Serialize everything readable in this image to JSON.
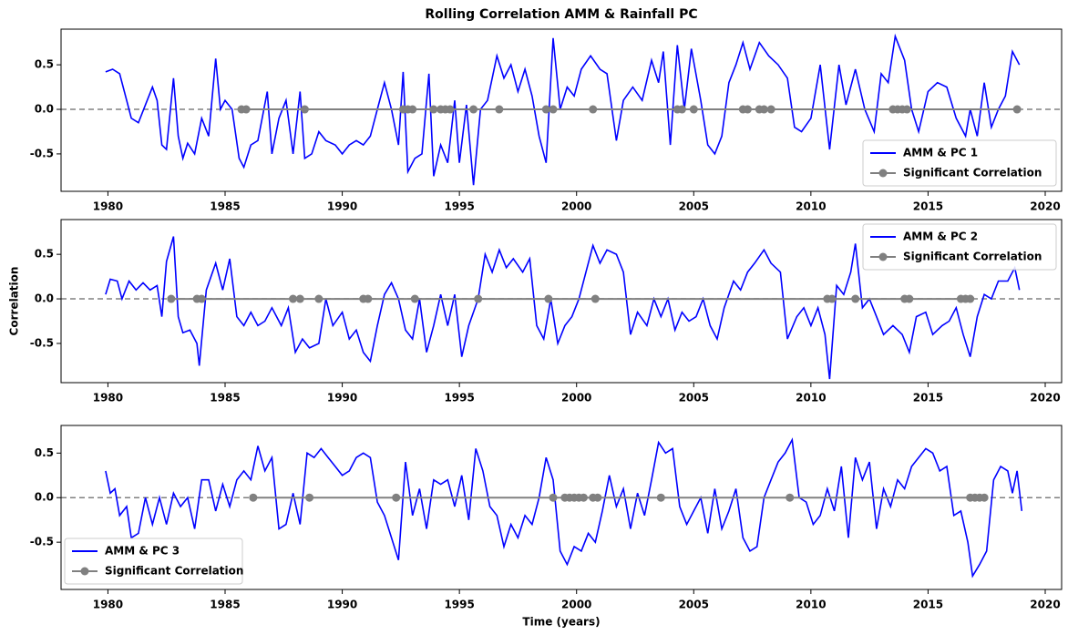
{
  "chart_data": [
    {
      "type": "line",
      "title": "Rolling Correlation AMM & Rainfall PC",
      "legend": "lower right",
      "zero_line": true,
      "xlim": [
        1978,
        2020.7
      ],
      "xticks": [
        1980,
        1985,
        1990,
        1995,
        2000,
        2005,
        2010,
        2015,
        2020
      ],
      "ylim": [
        -0.92,
        0.9
      ],
      "yticks": [
        -0.5,
        {
          "value": 0,
          "label": "0.0"
        },
        0.5
      ],
      "series": [
        {
          "name": "AMM & PC 1",
          "color": "#0000ff",
          "x": [
            1979.9,
            1980.2,
            1980.5,
            1980.8,
            1981.0,
            1981.3,
            1981.6,
            1981.9,
            1982.1,
            1982.3,
            1982.5,
            1982.8,
            1983.0,
            1983.2,
            1983.4,
            1983.7,
            1984.0,
            1984.3,
            1984.6,
            1984.8,
            1985.0,
            1985.3,
            1985.6,
            1985.8,
            1986.1,
            1986.4,
            1986.8,
            1987.0,
            1987.3,
            1987.6,
            1987.9,
            1988.2,
            1988.4,
            1988.7,
            1989.0,
            1989.3,
            1989.7,
            1990.0,
            1990.3,
            1990.6,
            1990.9,
            1991.2,
            1991.5,
            1991.8,
            1992.1,
            1992.4,
            1992.6,
            1992.8,
            1993.1,
            1993.4,
            1993.7,
            1993.9,
            1994.2,
            1994.5,
            1994.8,
            1995.0,
            1995.3,
            1995.6,
            1995.9,
            1996.2,
            1996.6,
            1996.9,
            1997.2,
            1997.5,
            1997.8,
            1998.1,
            1998.4,
            1998.7,
            1999.0,
            1999.3,
            1999.6,
            1999.9,
            2000.2,
            2000.6,
            2001.0,
            2001.3,
            2001.7,
            2002.0,
            2002.4,
            2002.8,
            2003.2,
            2003.5,
            2003.7,
            2004.0,
            2004.3,
            2004.6,
            2004.9,
            2005.3,
            2005.6,
            2005.9,
            2006.2,
            2006.5,
            2006.8,
            2007.1,
            2007.4,
            2007.8,
            2008.2,
            2008.6,
            2009.0,
            2009.3,
            2009.6,
            2010.0,
            2010.4,
            2010.8,
            2011.2,
            2011.5,
            2011.9,
            2012.3,
            2012.7,
            2013.0,
            2013.3,
            2013.6,
            2014.0,
            2014.3,
            2014.6,
            2015.0,
            2015.4,
            2015.8,
            2016.2,
            2016.6,
            2016.8,
            2017.1,
            2017.4,
            2017.7,
            2018.0,
            2018.3,
            2018.6,
            2018.9
          ],
          "values": [
            0.42,
            0.45,
            0.4,
            0.1,
            -0.1,
            -0.15,
            0.05,
            0.25,
            0.1,
            -0.4,
            -0.45,
            0.35,
            -0.3,
            -0.55,
            -0.38,
            -0.5,
            -0.1,
            -0.3,
            0.57,
            0.0,
            0.1,
            0.0,
            -0.55,
            -0.65,
            -0.4,
            -0.35,
            0.2,
            -0.5,
            -0.1,
            0.1,
            -0.5,
            0.2,
            -0.55,
            -0.5,
            -0.25,
            -0.35,
            -0.4,
            -0.5,
            -0.4,
            -0.35,
            -0.4,
            -0.3,
            0.0,
            0.3,
            0.0,
            -0.4,
            0.42,
            -0.7,
            -0.55,
            -0.5,
            0.4,
            -0.75,
            -0.4,
            -0.6,
            0.1,
            -0.6,
            0.05,
            -0.85,
            0.0,
            0.1,
            0.6,
            0.35,
            0.5,
            0.2,
            0.45,
            0.15,
            -0.3,
            -0.6,
            0.8,
            0.0,
            0.25,
            0.15,
            0.45,
            0.6,
            0.45,
            0.4,
            -0.35,
            0.1,
            0.25,
            0.1,
            0.55,
            0.3,
            0.65,
            -0.4,
            0.72,
            0.0,
            0.68,
            0.1,
            -0.4,
            -0.5,
            -0.3,
            0.3,
            0.5,
            0.75,
            0.45,
            0.75,
            0.6,
            0.5,
            0.35,
            -0.2,
            -0.25,
            -0.1,
            0.5,
            -0.45,
            0.5,
            0.05,
            0.45,
            0.0,
            -0.25,
            0.4,
            0.3,
            0.82,
            0.55,
            0.0,
            -0.25,
            0.2,
            0.3,
            0.25,
            -0.1,
            -0.3,
            0.0,
            -0.3,
            0.3,
            -0.2,
            0.0,
            0.15,
            0.65,
            0.5
          ]
        },
        {
          "name": "Significant Correlation",
          "color": "#808080",
          "marker": "circle",
          "x": [
            1985.7,
            1985.9,
            1988.4,
            1992.6,
            1992.8,
            1993.0,
            1993.9,
            1994.2,
            1994.4,
            1994.6,
            1995.6,
            1996.7,
            1998.7,
            1999.0,
            2000.7,
            2004.3,
            2004.5,
            2005.0,
            2007.1,
            2007.3,
            2007.8,
            2008.0,
            2008.3,
            2013.5,
            2013.7,
            2013.9,
            2014.1,
            2018.8
          ],
          "values": [
            0,
            0,
            0,
            0,
            0,
            0,
            0,
            0,
            0,
            0,
            0,
            0,
            0,
            0,
            0,
            0,
            0,
            0,
            0,
            0,
            0,
            0,
            0,
            0,
            0,
            0,
            0,
            0
          ]
        }
      ]
    },
    {
      "type": "line",
      "y_label": "Correlation",
      "legend": "upper right",
      "zero_line": true,
      "xlim": [
        1978,
        2020.7
      ],
      "xticks": [
        1980,
        1985,
        1990,
        1995,
        2000,
        2005,
        2010,
        2015,
        2020
      ],
      "ylim": [
        -0.94,
        0.89
      ],
      "yticks": [
        -0.5,
        {
          "value": 0,
          "label": "0.0"
        },
        0.5
      ],
      "series": [
        {
          "name": "AMM & PC 2",
          "color": "#0000ff",
          "x": [
            1979.9,
            1980.1,
            1980.4,
            1980.6,
            1980.9,
            1981.2,
            1981.5,
            1981.8,
            1982.1,
            1982.3,
            1982.5,
            1982.8,
            1983.0,
            1983.2,
            1983.5,
            1983.8,
            1983.9,
            1984.2,
            1984.6,
            1984.9,
            1985.2,
            1985.5,
            1985.8,
            1986.1,
            1986.4,
            1986.7,
            1987.0,
            1987.4,
            1987.7,
            1988.0,
            1988.3,
            1988.6,
            1989.0,
            1989.3,
            1989.6,
            1990.0,
            1990.3,
            1990.6,
            1990.9,
            1991.2,
            1991.5,
            1991.8,
            1992.1,
            1992.4,
            1992.7,
            1993.0,
            1993.3,
            1993.6,
            1993.9,
            1994.2,
            1994.5,
            1994.8,
            1995.1,
            1995.4,
            1995.8,
            1996.1,
            1996.4,
            1996.7,
            1997.0,
            1997.3,
            1997.7,
            1998.0,
            1998.3,
            1998.6,
            1998.9,
            1999.2,
            1999.5,
            1999.8,
            2000.1,
            2000.4,
            2000.7,
            2001.0,
            2001.3,
            2001.7,
            2002.0,
            2002.3,
            2002.6,
            2003.0,
            2003.3,
            2003.6,
            2003.9,
            2004.2,
            2004.5,
            2004.8,
            2005.1,
            2005.4,
            2005.7,
            2006.0,
            2006.3,
            2006.7,
            2007.0,
            2007.3,
            2007.6,
            2008.0,
            2008.3,
            2008.7,
            2009.0,
            2009.4,
            2009.7,
            2010.0,
            2010.3,
            2010.6,
            2010.8,
            2011.1,
            2011.4,
            2011.7,
            2011.9,
            2012.2,
            2012.5,
            2012.8,
            2013.1,
            2013.5,
            2013.9,
            2014.2,
            2014.5,
            2014.9,
            2015.2,
            2015.6,
            2015.9,
            2016.2,
            2016.5,
            2016.8,
            2017.1,
            2017.4,
            2017.7,
            2018.0,
            2018.4,
            2018.7,
            2018.9
          ],
          "values": [
            0.05,
            0.22,
            0.2,
            0.0,
            0.2,
            0.1,
            0.18,
            0.1,
            0.15,
            -0.2,
            0.42,
            0.7,
            -0.2,
            -0.38,
            -0.35,
            -0.5,
            -0.75,
            0.1,
            0.4,
            0.1,
            0.45,
            -0.2,
            -0.3,
            -0.15,
            -0.3,
            -0.25,
            -0.1,
            -0.3,
            -0.1,
            -0.6,
            -0.45,
            -0.55,
            -0.5,
            0.0,
            -0.3,
            -0.15,
            -0.45,
            -0.35,
            -0.6,
            -0.7,
            -0.3,
            0.05,
            0.18,
            0.0,
            -0.35,
            -0.45,
            0.0,
            -0.6,
            -0.3,
            0.05,
            -0.3,
            0.05,
            -0.65,
            -0.3,
            0.0,
            0.5,
            0.3,
            0.55,
            0.35,
            0.45,
            0.3,
            0.45,
            -0.3,
            -0.45,
            0.0,
            -0.5,
            -0.3,
            -0.2,
            0.0,
            0.3,
            0.6,
            0.4,
            0.55,
            0.5,
            0.3,
            -0.4,
            -0.15,
            -0.3,
            0.0,
            -0.2,
            0.0,
            -0.35,
            -0.15,
            -0.25,
            -0.2,
            0.0,
            -0.3,
            -0.45,
            -0.1,
            0.2,
            0.1,
            0.3,
            0.4,
            0.55,
            0.4,
            0.3,
            -0.45,
            -0.2,
            -0.1,
            -0.3,
            -0.1,
            -0.4,
            -0.9,
            0.15,
            0.05,
            0.3,
            0.62,
            -0.1,
            0.0,
            -0.2,
            -0.4,
            -0.3,
            -0.4,
            -0.6,
            -0.2,
            -0.15,
            -0.4,
            -0.3,
            -0.25,
            -0.1,
            -0.4,
            -0.65,
            -0.2,
            0.05,
            0.0,
            0.2,
            0.2,
            0.35,
            0.1
          ]
        },
        {
          "name": "Significant Correlation",
          "color": "#808080",
          "marker": "circle",
          "x": [
            1982.7,
            1983.8,
            1984.0,
            1987.9,
            1988.2,
            1989.0,
            1990.9,
            1991.1,
            1993.1,
            1995.8,
            1998.8,
            2000.8,
            2010.7,
            2010.9,
            2011.9,
            2014.0,
            2014.2,
            2016.4,
            2016.6,
            2016.8
          ],
          "values": [
            0,
            0,
            0,
            0,
            0,
            0,
            0,
            0,
            0,
            0,
            0,
            0,
            0,
            0,
            0,
            0,
            0,
            0,
            0,
            0
          ]
        }
      ]
    },
    {
      "type": "line",
      "x_label": "Time (years)",
      "legend": "lower left",
      "zero_line": true,
      "xlim": [
        1978,
        2020.7
      ],
      "xticks": [
        1980,
        1985,
        1990,
        1995,
        2000,
        2005,
        2010,
        2015,
        2020
      ],
      "ylim": [
        -1.03,
        0.81
      ],
      "yticks": [
        -0.5,
        {
          "value": 0,
          "label": "0.0"
        },
        0.5
      ],
      "series": [
        {
          "name": "AMM & PC 3",
          "color": "#0000ff",
          "x": [
            1979.9,
            1980.1,
            1980.3,
            1980.5,
            1980.8,
            1981.0,
            1981.3,
            1981.6,
            1981.9,
            1982.2,
            1982.5,
            1982.8,
            1983.1,
            1983.4,
            1983.7,
            1984.0,
            1984.3,
            1984.6,
            1984.9,
            1985.2,
            1985.5,
            1985.8,
            1986.1,
            1986.4,
            1986.7,
            1987.0,
            1987.3,
            1987.6,
            1987.9,
            1988.2,
            1988.5,
            1988.8,
            1989.1,
            1989.4,
            1989.7,
            1990.0,
            1990.3,
            1990.6,
            1990.9,
            1991.2,
            1991.5,
            1991.8,
            1992.1,
            1992.4,
            1992.7,
            1993.0,
            1993.3,
            1993.6,
            1993.9,
            1994.2,
            1994.5,
            1994.8,
            1995.1,
            1995.4,
            1995.7,
            1996.0,
            1996.3,
            1996.6,
            1996.9,
            1997.2,
            1997.5,
            1997.8,
            1998.1,
            1998.4,
            1998.7,
            1999.0,
            1999.3,
            1999.6,
            1999.9,
            2000.2,
            2000.5,
            2000.8,
            2001.1,
            2001.4,
            2001.7,
            2002.0,
            2002.3,
            2002.6,
            2002.9,
            2003.2,
            2003.5,
            2003.8,
            2004.1,
            2004.4,
            2004.7,
            2005.0,
            2005.3,
            2005.6,
            2005.9,
            2006.2,
            2006.5,
            2006.8,
            2007.1,
            2007.4,
            2007.7,
            2008.0,
            2008.3,
            2008.6,
            2008.9,
            2009.2,
            2009.5,
            2009.8,
            2010.1,
            2010.4,
            2010.7,
            2011.0,
            2011.3,
            2011.6,
            2011.9,
            2012.2,
            2012.5,
            2012.8,
            2013.1,
            2013.4,
            2013.7,
            2014.0,
            2014.3,
            2014.6,
            2014.9,
            2015.2,
            2015.5,
            2015.8,
            2016.1,
            2016.4,
            2016.7,
            2016.9,
            2017.2,
            2017.5,
            2017.8,
            2018.1,
            2018.4,
            2018.6,
            2018.8,
            2019.0
          ],
          "values": [
            0.3,
            0.05,
            0.1,
            -0.2,
            -0.1,
            -0.45,
            -0.4,
            0.0,
            -0.3,
            0.0,
            -0.3,
            0.05,
            -0.1,
            0.0,
            -0.35,
            0.2,
            0.2,
            -0.15,
            0.15,
            -0.1,
            0.2,
            0.3,
            0.2,
            0.58,
            0.3,
            0.45,
            -0.35,
            -0.3,
            0.05,
            -0.3,
            0.5,
            0.45,
            0.55,
            0.45,
            0.35,
            0.25,
            0.3,
            0.45,
            0.5,
            0.45,
            -0.05,
            -0.2,
            -0.45,
            -0.7,
            0.4,
            -0.2,
            0.1,
            -0.35,
            0.2,
            0.15,
            0.2,
            -0.1,
            0.25,
            -0.25,
            0.55,
            0.3,
            -0.1,
            -0.2,
            -0.55,
            -0.3,
            -0.45,
            -0.2,
            -0.3,
            0.0,
            0.45,
            0.2,
            -0.6,
            -0.75,
            -0.55,
            -0.6,
            -0.4,
            -0.5,
            -0.15,
            0.25,
            -0.1,
            0.1,
            -0.35,
            0.05,
            -0.2,
            0.2,
            0.62,
            0.5,
            0.55,
            -0.1,
            -0.3,
            -0.15,
            0.0,
            -0.4,
            0.1,
            -0.35,
            -0.15,
            0.1,
            -0.45,
            -0.6,
            -0.55,
            0.0,
            0.2,
            0.4,
            0.5,
            0.65,
            0.0,
            -0.05,
            -0.3,
            -0.2,
            0.1,
            -0.15,
            0.35,
            -0.45,
            0.45,
            0.2,
            0.4,
            -0.35,
            0.1,
            -0.1,
            0.2,
            0.1,
            0.35,
            0.45,
            0.55,
            0.5,
            0.3,
            0.35,
            -0.2,
            -0.15,
            -0.5,
            -0.88,
            -0.75,
            -0.6,
            0.2,
            0.35,
            0.3,
            0.05,
            0.3,
            -0.15
          ]
        },
        {
          "name": "Significant Correlation",
          "color": "#808080",
          "marker": "circle",
          "x": [
            1986.2,
            1988.6,
            1992.3,
            1999.0,
            1999.5,
            1999.7,
            1999.9,
            2000.1,
            2000.3,
            2000.7,
            2000.9,
            2003.6,
            2009.1,
            2016.8,
            2017.0,
            2017.2,
            2017.4
          ],
          "values": [
            0,
            0,
            0,
            0,
            0,
            0,
            0,
            0,
            0,
            0,
            0,
            0,
            0,
            0,
            0,
            0,
            0
          ]
        }
      ]
    }
  ]
}
